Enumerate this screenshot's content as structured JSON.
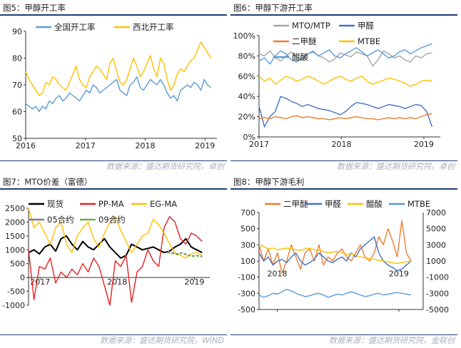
{
  "panels": [
    {
      "title": "图5：甲醇开工率",
      "source": "数据来源：盛达期货研究院，卓创",
      "chart_data": {
        "type": "line",
        "xlabels": [
          "2016",
          "2017",
          "2018",
          "2019"
        ],
        "ylim": [
          50,
          90
        ],
        "yticks": [
          "50",
          "60",
          "70",
          "80",
          "90"
        ],
        "legend": [
          "全国开工率",
          "西北开工率"
        ],
        "series": [
          {
            "name": "全国开工率",
            "color": "#5b9bd5",
            "x_range": [
              2016.0,
              2019.1
            ],
            "values": [
              63,
              62,
              61,
              62,
              60,
              62,
              61,
              64,
              63,
              65,
              66,
              64,
              65,
              67,
              66,
              65,
              64,
              66,
              68,
              67,
              70,
              69,
              67,
              68,
              69,
              70,
              71,
              72,
              68,
              67,
              66,
              70,
              71,
              73,
              69,
              68,
              70,
              72,
              71,
              70,
              72,
              70,
              67,
              65,
              66,
              64,
              68,
              69,
              70,
              69,
              71,
              70,
              68,
              72,
              70,
              69
            ]
          },
          {
            "name": "西北开工率",
            "color": "#ffc000",
            "x_range": [
              2016.0,
              2019.1
            ],
            "values": [
              75,
              72,
              70,
              68,
              66,
              67,
              71,
              70,
              73,
              72,
              70,
              69,
              68,
              71,
              74,
              77,
              72,
              70,
              69,
              73,
              75,
              77,
              76,
              74,
              72,
              78,
              80,
              75,
              71,
              70,
              72,
              76,
              80,
              77,
              73,
              75,
              78,
              81,
              76,
              73,
              80,
              78,
              72,
              68,
              70,
              74,
              76,
              75,
              77,
              79,
              80,
              83,
              86,
              84,
              82,
              80
            ]
          }
        ]
      }
    },
    {
      "title": "图6：甲醇下游开工率",
      "source": "数据来源：盛达期货研究院，卓创",
      "chart_data": {
        "type": "line",
        "xlabels": [
          "2017",
          "2018",
          "2019"
        ],
        "ylim": [
          0,
          100
        ],
        "yticks": [
          "0%",
          "20%",
          "40%",
          "60%",
          "80%",
          "100%"
        ],
        "legend": [
          "MTO/MTP",
          "甲醛",
          "二甲醚",
          "MTBE",
          "醋酸"
        ],
        "series": [
          {
            "name": "MTO/MTP",
            "color": "#a6a6a6",
            "x_range": [
              2017.0,
              2019.1
            ],
            "values": [
              82,
              80,
              85,
              78,
              75,
              80,
              84,
              79,
              76,
              82,
              85,
              80,
              78,
              74,
              77,
              83,
              81,
              79,
              84,
              82,
              80,
              70,
              76,
              85,
              82,
              78,
              80,
              76,
              74,
              80,
              78,
              82,
              83
            ]
          },
          {
            "name": "甲醛",
            "color": "#4472c4",
            "x_range": [
              2017.0,
              2019.1
            ],
            "values": [
              30,
              10,
              20,
              25,
              40,
              38,
              35,
              33,
              30,
              32,
              30,
              28,
              27,
              26,
              24,
              22,
              25,
              30,
              34,
              33,
              32,
              30,
              28,
              30,
              32,
              31,
              30,
              28,
              30,
              32,
              31,
              25,
              10
            ]
          },
          {
            "name": "二甲醚",
            "color": "#ed7d31",
            "x_range": [
              2017.0,
              2019.1
            ],
            "values": [
              18,
              19,
              18,
              20,
              19,
              18,
              20,
              21,
              19,
              20,
              19,
              18,
              18,
              17,
              18,
              19,
              18,
              19,
              20,
              19,
              18,
              18,
              17,
              18,
              19,
              18,
              19,
              18,
              19,
              18,
              20,
              22,
              23
            ]
          },
          {
            "name": "MTBE",
            "color": "#ffc000",
            "x_range": [
              2017.0,
              2019.1
            ],
            "values": [
              60,
              55,
              58,
              52,
              56,
              60,
              58,
              55,
              57,
              60,
              58,
              55,
              52,
              55,
              58,
              60,
              57,
              55,
              58,
              60,
              55,
              52,
              54,
              56,
              58,
              57,
              55,
              53,
              50,
              52,
              55,
              56,
              55
            ]
          },
          {
            "name": "醋酸",
            "color": "#5b9bd5",
            "x_range": [
              2017.0,
              2019.1
            ],
            "values": [
              75,
              78,
              72,
              80,
              85,
              82,
              76,
              74,
              78,
              82,
              84,
              80,
              83,
              86,
              80,
              78,
              82,
              85,
              88,
              84,
              80,
              83,
              86,
              82,
              78,
              80,
              84,
              86,
              82,
              85,
              88,
              90,
              92
            ]
          }
        ]
      }
    },
    {
      "title": "图7：MTO价差（富德）",
      "source": "数据来源：盛达期货研究院，WIND",
      "chart_data": {
        "type": "line",
        "xlabels": [
          "2017",
          "2018",
          "2019"
        ],
        "ylim": [
          -1000,
          2500
        ],
        "yticks": [
          "-1000",
          "-500",
          "0",
          "500",
          "1000",
          "1500",
          "2000",
          "2500"
        ],
        "legend": [
          "现货",
          "PP-MA",
          "EG-MA",
          "05合约",
          "09合约"
        ],
        "series": [
          {
            "name": "现货",
            "color": "#000000",
            "x_range": [
              2016.85,
              2019.1
            ],
            "values": [
              900,
              1000,
              850,
              1100,
              1200,
              950,
              1400,
              1500,
              1200,
              1000,
              1300,
              1100,
              1000,
              1200,
              1400,
              1100,
              900,
              700,
              800,
              1200,
              1100,
              1000,
              1050,
              1100,
              1000,
              900,
              950,
              1100,
              1200,
              1400,
              1100,
              1000,
              900
            ]
          },
          {
            "name": "PP-MA",
            "color": "#e32121",
            "x_range": [
              2016.85,
              2019.1
            ],
            "values": [
              1000,
              -800,
              400,
              300,
              700,
              -200,
              200,
              0,
              300,
              100,
              500,
              200,
              700,
              400,
              -300,
              -1000,
              600,
              400,
              800,
              -900,
              200,
              400,
              1000,
              600,
              400,
              1800,
              2200,
              2000,
              1400,
              1200,
              1600,
              1500,
              1300
            ]
          },
          {
            "name": "EG-MA",
            "color": "#ffc000",
            "x_range": [
              2016.85,
              2019.1
            ],
            "values": [
              2500,
              1800,
              2000,
              1600,
              1200,
              1800,
              2000,
              1200,
              900,
              1500,
              1800,
              2000,
              1400,
              1100,
              1600,
              2000,
              2200,
              1700,
              1300,
              900,
              1200,
              1500,
              1600,
              2100,
              1900,
              1600,
              1200,
              900,
              800,
              700,
              850,
              900,
              800
            ]
          },
          {
            "name": "05合约",
            "color": "#7f7f7f",
            "x_range": [
              2018.65,
              2019.1
            ],
            "dashed": true,
            "values": [
              950,
              900,
              850,
              900,
              820,
              780,
              800,
              760
            ]
          },
          {
            "name": "09合约",
            "color": "#70ad47",
            "x_range": [
              2018.65,
              2019.1
            ],
            "dashed": true,
            "values": [
              900,
              860,
              820,
              880,
              800,
              760,
              780,
              740
            ]
          }
        ]
      }
    },
    {
      "title": "图8：甲醇下游毛利",
      "source": "数据来源：盛达期货研究院，金联创",
      "chart_data": {
        "type": "line",
        "xlabels": [
          "2018",
          "2019"
        ],
        "ylim": [
          -500,
          700
        ],
        "yticks": [
          "-500",
          "-300",
          "-100",
          "100",
          "300",
          "500",
          "700"
        ],
        "y2lim": [
          -5000,
          7000
        ],
        "y2ticks": [
          "-5000",
          "-3000",
          "-1000",
          "1000",
          "3000",
          "5000",
          "7000"
        ],
        "legend": [
          "二甲醚",
          "甲醛",
          "醋酸",
          "MTBE"
        ],
        "series": [
          {
            "name": "二甲醚",
            "color": "#ed7d31",
            "x_range": [
              2017.85,
              2019.1
            ],
            "values": [
              300,
              100,
              250,
              50,
              200,
              -50,
              100,
              300,
              150,
              0,
              200,
              250,
              100,
              300,
              50,
              150,
              100,
              200,
              250,
              150,
              100,
              200,
              300,
              150,
              100,
              200,
              400,
              300,
              500,
              350,
              150,
              600,
              200,
              100
            ]
          },
          {
            "name": "甲醛",
            "color": "#4472c4",
            "x_range": [
              2017.85,
              2019.1
            ],
            "values": [
              200,
              100,
              150,
              50,
              100,
              120,
              80,
              150,
              200,
              100,
              50,
              80,
              120,
              200,
              150,
              100,
              80,
              120,
              150,
              100,
              200,
              150,
              250,
              300,
              350,
              400,
              200,
              100,
              50,
              20,
              -20,
              0,
              50,
              100
            ]
          },
          {
            "name": "醋酸",
            "color": "#ffc000",
            "x_range": [
              2017.85,
              2019.1
            ],
            "values": [
              300,
              280,
              250,
              260,
              240,
              250,
              260,
              250,
              240,
              230,
              250,
              260,
              240,
              230,
              220,
              200,
              210,
              220,
              200,
              180,
              190,
              170,
              150,
              140,
              130,
              120,
              110,
              100,
              90,
              80,
              70,
              80,
              90,
              100
            ]
          },
          {
            "name": "MTBE",
            "color": "#5b9bd5",
            "axis": "right",
            "x_range": [
              2017.85,
              2019.1
            ],
            "values": [
              -3200,
              -3500,
              -3300,
              -3000,
              -3100,
              -2800,
              -2500,
              -2700,
              -3000,
              -3200,
              -3400,
              -3300,
              -3100,
              -3000,
              -3200,
              -3500,
              -3300,
              -3100,
              -3200,
              -3000,
              -2800,
              -3000,
              -3200,
              -3400,
              -3300,
              -3100,
              -3000,
              -3200,
              -3100,
              -3000,
              -2900,
              -3000,
              -3100,
              -3200
            ]
          }
        ]
      }
    }
  ]
}
